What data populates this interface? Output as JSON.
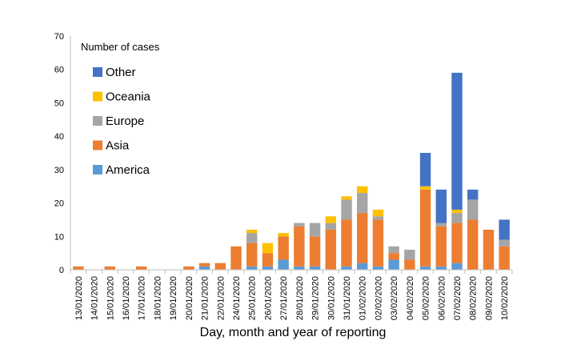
{
  "chart_data": {
    "type": "bar",
    "stacked": true,
    "categories": [
      "13/01/2020",
      "14/01/2020",
      "15/01/2020",
      "16/01/2020",
      "17/01/2020",
      "18/01/2020",
      "19/01/2020",
      "20/01/2020",
      "21/01/2020",
      "22/01/2020",
      "24/01/2020",
      "25/01/2020",
      "26/01/2020",
      "27/01/2020",
      "28/01/2020",
      "29/01/2020",
      "30/01/2020",
      "31/01/2020",
      "01/02/2020",
      "02/02/2020",
      "03/02/2020",
      "04/02/2020",
      "05/02/2020",
      "06/02/2020",
      "07/02/2020",
      "08/02/2020",
      "09/02/2020",
      "10/02/2020"
    ],
    "legend_title": "Number of cases",
    "legend_placement": "top-left",
    "xlabel": "Day, month and year of reporting",
    "ylabel": "",
    "ylim": [
      0,
      70
    ],
    "yticks": [
      0,
      10,
      20,
      30,
      40,
      50,
      60,
      70
    ],
    "grid": false,
    "series": [
      {
        "name": "America",
        "color": "#5b9bd5",
        "values": [
          0,
          0,
          0,
          0,
          0,
          0,
          0,
          0,
          1,
          0,
          0,
          1,
          1,
          3,
          1,
          1,
          0,
          1,
          2,
          1,
          3,
          0,
          1,
          1,
          2,
          0,
          0,
          0
        ]
      },
      {
        "name": "Asia",
        "color": "#ed7d31",
        "values": [
          1,
          0,
          1,
          0,
          1,
          0,
          0,
          1,
          1,
          2,
          7,
          7,
          4,
          7,
          12,
          9,
          12,
          14,
          15,
          14,
          2,
          3,
          23,
          12,
          12,
          15,
          12,
          7
        ]
      },
      {
        "name": "Europe",
        "color": "#a5a5a5",
        "values": [
          0,
          0,
          0,
          0,
          0,
          0,
          0,
          0,
          0,
          0,
          0,
          3,
          0,
          0,
          1,
          4,
          2,
          6,
          6,
          1,
          2,
          3,
          0,
          1,
          3,
          6,
          0,
          2
        ]
      },
      {
        "name": "Oceania",
        "color": "#ffc000",
        "values": [
          0,
          0,
          0,
          0,
          0,
          0,
          0,
          0,
          0,
          0,
          0,
          1,
          3,
          1,
          0,
          0,
          2,
          1,
          2,
          2,
          0,
          0,
          1,
          0,
          1,
          0,
          0,
          0
        ]
      },
      {
        "name": "Other",
        "color": "#4472c4",
        "values": [
          0,
          0,
          0,
          0,
          0,
          0,
          0,
          0,
          0,
          0,
          0,
          0,
          0,
          0,
          0,
          0,
          0,
          0,
          0,
          0,
          0,
          0,
          10,
          10,
          41,
          3,
          0,
          6
        ]
      }
    ],
    "legend_order": [
      "Other",
      "Oceania",
      "Europe",
      "Asia",
      "America"
    ]
  }
}
